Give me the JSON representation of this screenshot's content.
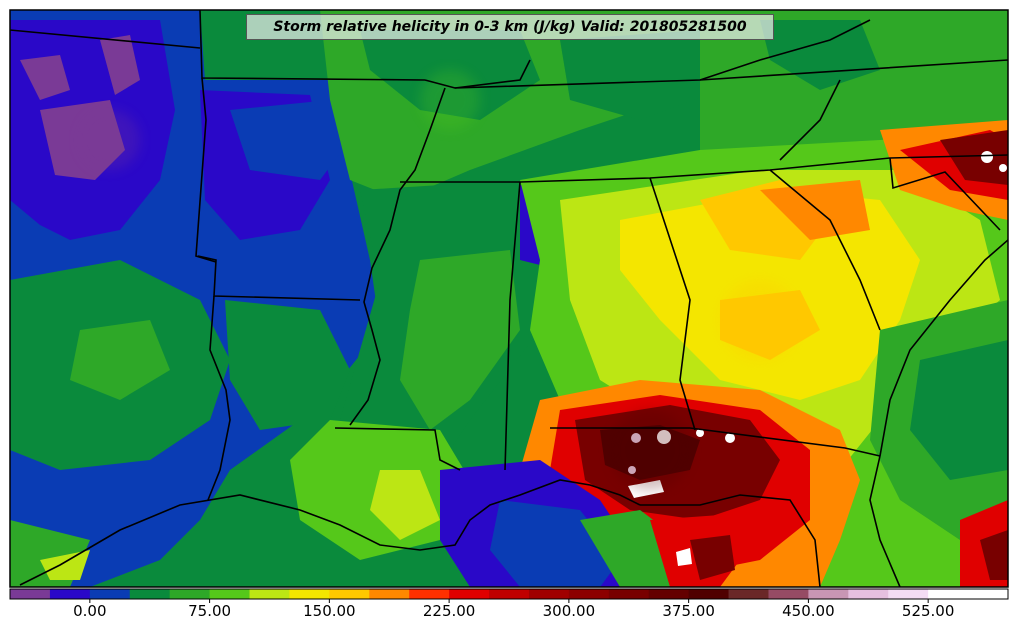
{
  "title": "Storm relative helicity in 0-3 km (J/kg) Valid: 201805281500",
  "colorbar": {
    "tick_labels": [
      "0.00",
      "75.00",
      "150.00",
      "225.00",
      "300.00",
      "375.00",
      "450.00",
      "525.00"
    ],
    "tick_values": [
      0,
      75,
      150,
      225,
      300,
      375,
      450,
      525
    ],
    "min": -50,
    "max": 575,
    "step": 25,
    "colors": [
      "#7a3a96",
      "#2a08c8",
      "#0a3cb4",
      "#0a8a3c",
      "#2ea828",
      "#55c81a",
      "#bce614",
      "#f4e600",
      "#ffc800",
      "#ff8800",
      "#ff3000",
      "#e00000",
      "#c00000",
      "#a00000",
      "#8c0000",
      "#780000",
      "#640000",
      "#500000",
      "#6a2828",
      "#964b64",
      "#c896b4",
      "#e6c0e0",
      "#f4dcf4",
      "#ffffff",
      "#ffffff"
    ]
  },
  "map": {
    "shade_colors": {
      "purple": "#7a3a96",
      "deep_blue": "#2a08c8",
      "blue": "#0a3cb4",
      "green_dark": "#0a8a3c",
      "green": "#2ea828",
      "green_light": "#55c81a",
      "yellow_green": "#bce614",
      "yellow": "#f4e600",
      "orange": "#ff8800",
      "red": "#e00000",
      "maroon": "#780000",
      "pink": "#f4dcf4"
    }
  }
}
